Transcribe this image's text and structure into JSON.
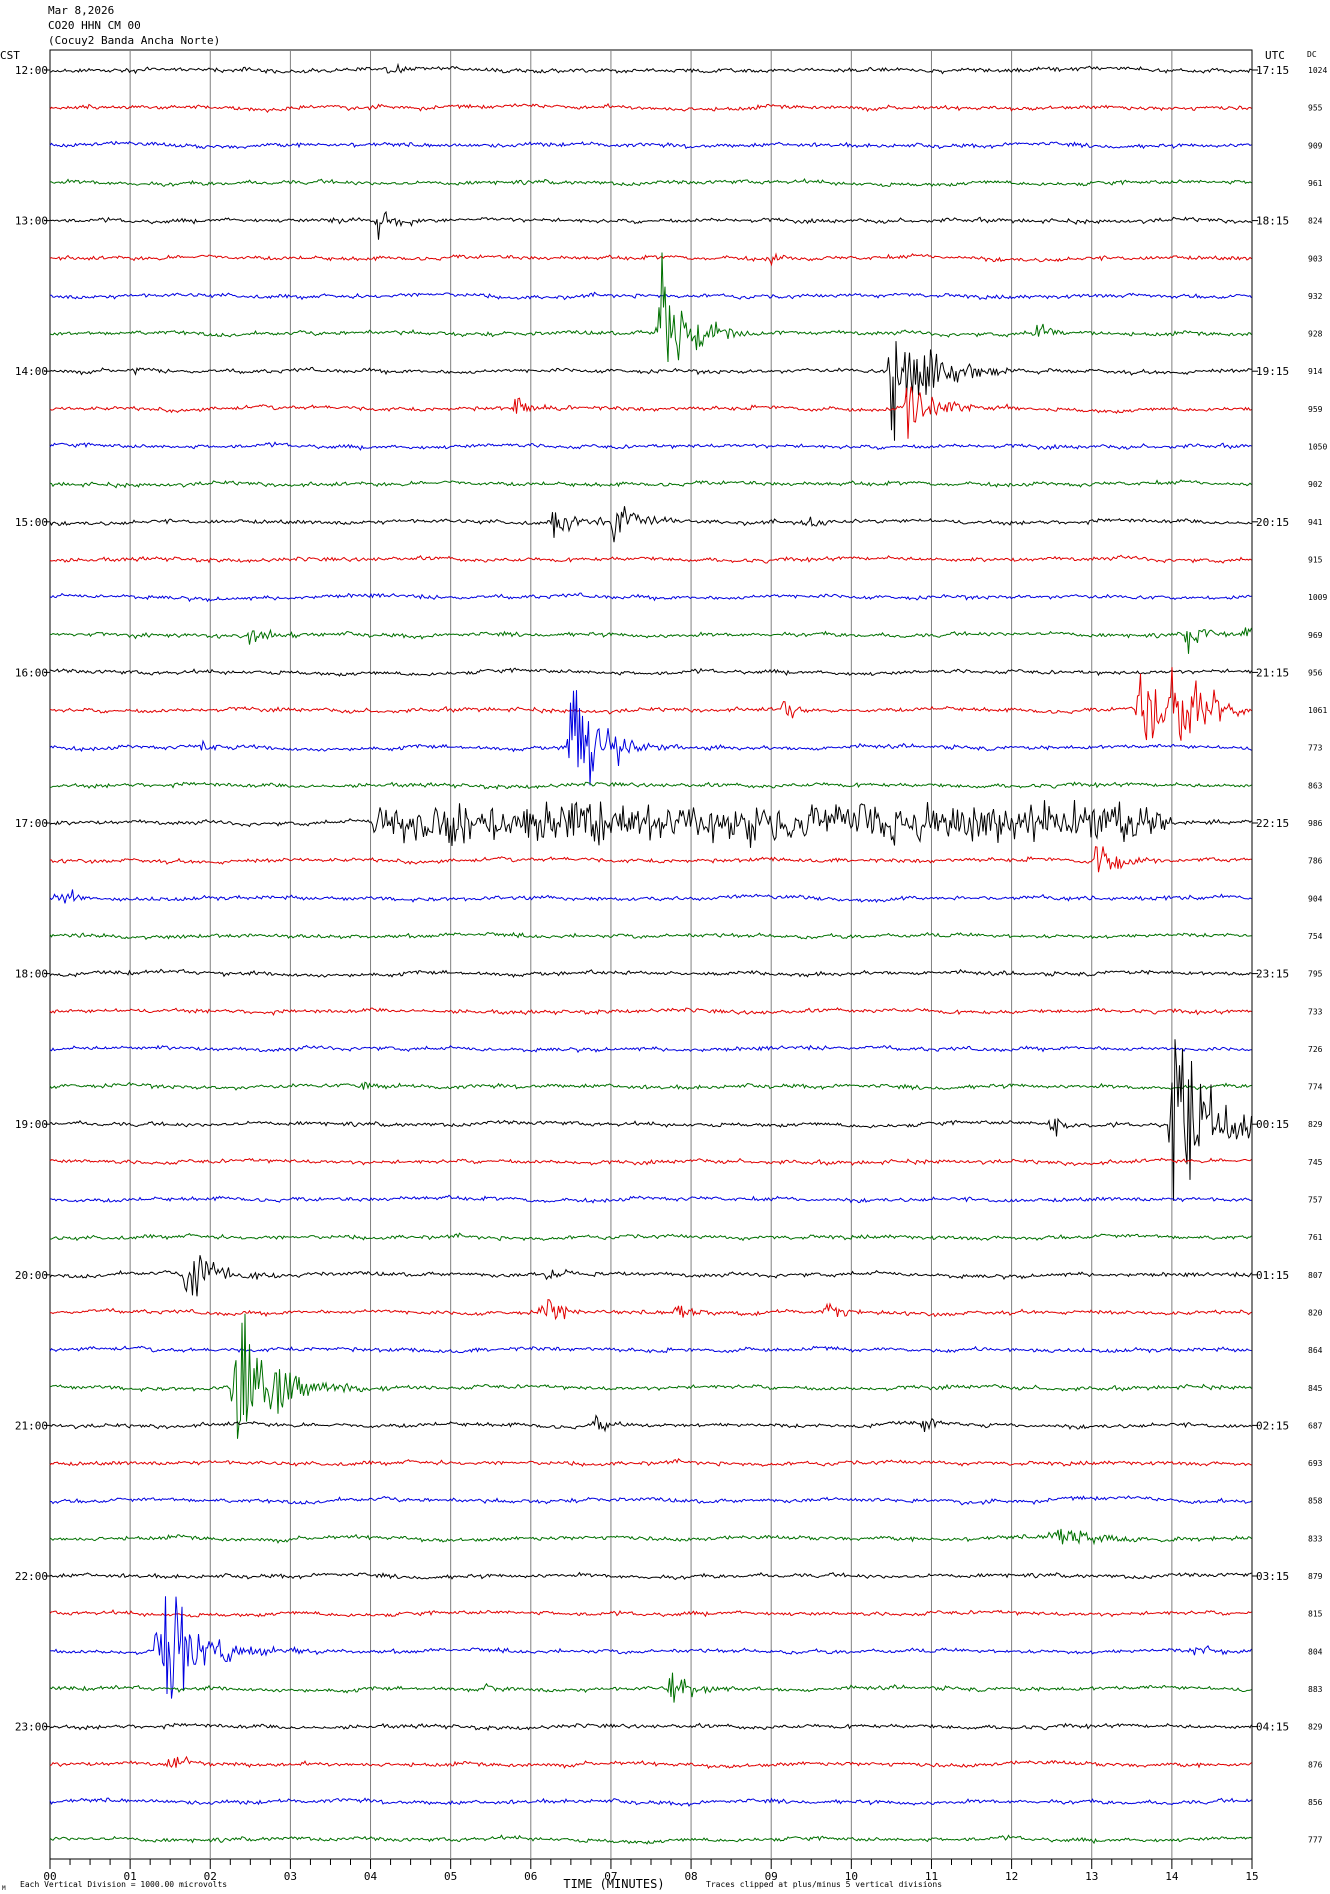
{
  "header": {
    "date": "Mar 8,2026",
    "station": "CO20 HHN CM 00",
    "network": "(Cocuy2 Banda Ancha Norte)"
  },
  "labels": {
    "left_tz": "CST",
    "right_tz": "UTC",
    "dc": "DC"
  },
  "footer": {
    "scale_note": "Each Vertical Division = 1000.00 microvolts",
    "clip_note": "Traces clipped at plus/minus 5 vertical divisions",
    "corner_mark": "M"
  },
  "colors": {
    "trace_cycle": [
      "#000000",
      "#e00000",
      "#0000e0",
      "#007000"
    ],
    "grid": "#808080"
  },
  "chart_data": {
    "type": "line",
    "title": "Mar 8,2026",
    "xlabel": "TIME (MINUTES)",
    "ylabel": "",
    "xlim": [
      0,
      15
    ],
    "x_ticks": [
      "00",
      "01",
      "02",
      "03",
      "04",
      "05",
      "06",
      "07",
      "08",
      "09",
      "10",
      "11",
      "12",
      "13",
      "14",
      "15"
    ],
    "lines_per_hour": 4,
    "left_hour_labels": [
      "12:00",
      "13:00",
      "14:00",
      "15:00",
      "16:00",
      "17:00",
      "18:00",
      "19:00",
      "20:00",
      "21:00",
      "22:00",
      "23:00"
    ],
    "right_hour_labels": [
      "17:15",
      "18:15",
      "19:15",
      "20:15",
      "21:15",
      "22:15",
      "23:15",
      "00:15",
      "01:15",
      "02:15",
      "03:15",
      "04:15"
    ],
    "dc_offsets": [
      1024,
      955,
      909,
      961,
      824,
      903,
      932,
      928,
      914,
      959,
      1050,
      902,
      941,
      915,
      1009,
      969,
      956,
      1061,
      773,
      863,
      986,
      786,
      904,
      754,
      795,
      733,
      726,
      774,
      829,
      745,
      757,
      761,
      807,
      820,
      864,
      845,
      687,
      693,
      858,
      833,
      879,
      815,
      804,
      883,
      829,
      876,
      856,
      777
    ],
    "events": [
      {
        "line": 0,
        "minute": 4.2,
        "amp": 0.3,
        "dur": 0.3
      },
      {
        "line": 4,
        "minute": 3.5,
        "amp": 0.2,
        "dur": 0.2
      },
      {
        "line": 4,
        "minute": 4.1,
        "amp": 0.6,
        "dur": 0.4
      },
      {
        "line": 5,
        "minute": 9.0,
        "amp": 0.2,
        "dur": 0.2
      },
      {
        "line": 7,
        "minute": 7.6,
        "amp": 2.5,
        "dur": 0.6
      },
      {
        "line": 7,
        "minute": 12.3,
        "amp": 0.5,
        "dur": 0.3
      },
      {
        "line": 8,
        "minute": 1.05,
        "amp": 0.4,
        "dur": 0.1
      },
      {
        "line": 8,
        "minute": 10.5,
        "amp": 2.8,
        "dur": 0.7
      },
      {
        "line": 8,
        "minute": 11.0,
        "amp": 0.8,
        "dur": 0.3
      },
      {
        "line": 9,
        "minute": 5.8,
        "amp": 0.5,
        "dur": 0.3
      },
      {
        "line": 9,
        "minute": 10.7,
        "amp": 1.2,
        "dur": 0.6
      },
      {
        "line": 12,
        "minute": 6.3,
        "amp": 0.9,
        "dur": 0.4
      },
      {
        "line": 12,
        "minute": 7.05,
        "amp": 1.6,
        "dur": 0.3
      },
      {
        "line": 12,
        "minute": 9.4,
        "amp": 0.5,
        "dur": 0.3
      },
      {
        "line": 15,
        "minute": 2.5,
        "amp": 0.6,
        "dur": 0.3
      },
      {
        "line": 15,
        "minute": 14.2,
        "amp": 0.7,
        "dur": 0.3
      },
      {
        "line": 15,
        "minute": 14.9,
        "amp": 0.4,
        "dur": 0.2
      },
      {
        "line": 17,
        "minute": 9.15,
        "amp": 0.5,
        "dur": 0.3
      },
      {
        "line": 17,
        "minute": 13.6,
        "amp": 1.8,
        "dur": 0.8
      },
      {
        "line": 17,
        "minute": 14.0,
        "amp": 1.5,
        "dur": 0.7
      },
      {
        "line": 18,
        "minute": 6.5,
        "amp": 2.6,
        "dur": 0.6
      },
      {
        "line": 18,
        "minute": 7.15,
        "amp": 0.6,
        "dur": 0.2
      },
      {
        "line": 18,
        "minute": 1.9,
        "amp": 0.3,
        "dur": 0.2
      },
      {
        "line": 20,
        "minute": 4.0,
        "amp": 0.7,
        "dur": 10.0
      },
      {
        "line": 21,
        "minute": 13.05,
        "amp": 0.9,
        "dur": 0.4
      },
      {
        "line": 22,
        "minute": 0.1,
        "amp": 0.5,
        "dur": 0.3
      },
      {
        "line": 27,
        "minute": 3.9,
        "amp": 0.3,
        "dur": 0.2
      },
      {
        "line": 28,
        "minute": 12.5,
        "amp": 0.6,
        "dur": 0.2
      },
      {
        "line": 28,
        "minute": 14.0,
        "amp": 3.5,
        "dur": 1.0
      },
      {
        "line": 32,
        "minute": 1.7,
        "amp": 1.4,
        "dur": 0.6
      },
      {
        "line": 32,
        "minute": 6.2,
        "amp": 0.5,
        "dur": 0.3
      },
      {
        "line": 33,
        "minute": 6.15,
        "amp": 0.6,
        "dur": 0.4
      },
      {
        "line": 33,
        "minute": 7.8,
        "amp": 0.5,
        "dur": 0.3
      },
      {
        "line": 33,
        "minute": 9.7,
        "amp": 0.4,
        "dur": 0.3
      },
      {
        "line": 35,
        "minute": 2.3,
        "amp": 2.8,
        "dur": 0.8
      },
      {
        "line": 36,
        "minute": 6.8,
        "amp": 0.5,
        "dur": 0.3
      },
      {
        "line": 36,
        "minute": 10.9,
        "amp": 0.3,
        "dur": 0.3
      },
      {
        "line": 39,
        "minute": 12.5,
        "amp": 0.5,
        "dur": 1.0
      },
      {
        "line": 42,
        "minute": 1.35,
        "amp": 2.6,
        "dur": 0.8
      },
      {
        "line": 42,
        "minute": 14.3,
        "amp": 0.3,
        "dur": 0.4
      },
      {
        "line": 43,
        "minute": 7.75,
        "amp": 0.8,
        "dur": 0.4
      },
      {
        "line": 43,
        "minute": 5.45,
        "amp": 0.3,
        "dur": 0.1
      },
      {
        "line": 45,
        "minute": 1.5,
        "amp": 0.3,
        "dur": 0.4
      }
    ]
  }
}
